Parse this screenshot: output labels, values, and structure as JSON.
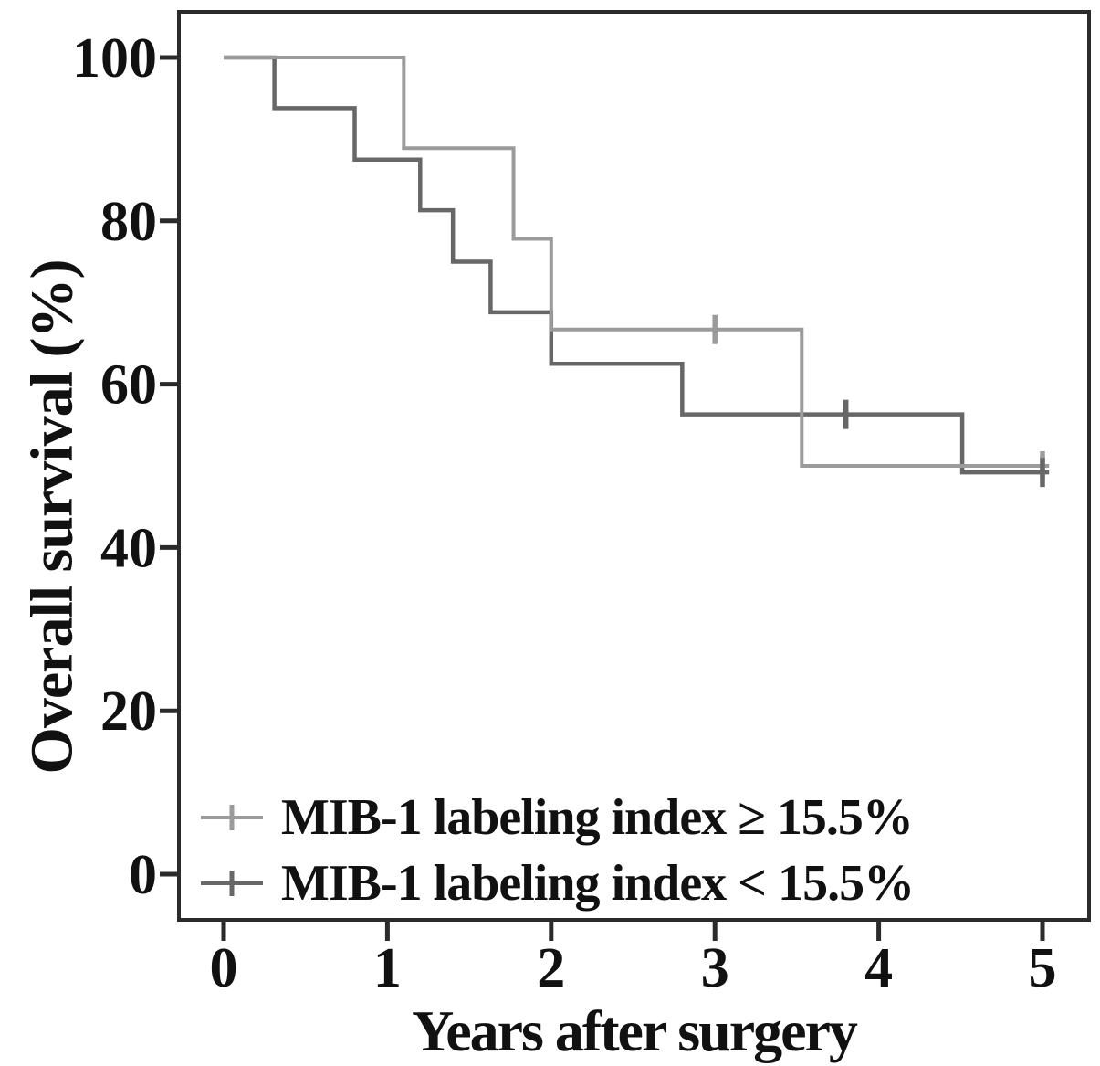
{
  "chart_data": {
    "type": "line",
    "subtype": "kaplan-meier-step-curves",
    "title": "",
    "xlabel": "Years after surgery",
    "ylabel": "Overall survival (%)",
    "xlim": [
      0,
      5.1
    ],
    "ylim": [
      0,
      105
    ],
    "x_ticks": [
      0,
      1,
      2,
      3,
      4,
      5
    ],
    "y_ticks": [
      0,
      20,
      40,
      60,
      80,
      100
    ],
    "grid": false,
    "legend_position": "inside-bottom-left",
    "axis_color": "#2b2b2b",
    "text_color": "#111111",
    "series": [
      {
        "name": "MIB-1 labeling index ≥ 15.5%",
        "color": "#9b9b9b",
        "marker": "plus-censor-tick",
        "steps": [
          [
            0,
            100
          ],
          [
            1.1,
            88.9
          ],
          [
            1.77,
            77.8
          ],
          [
            2.0,
            66.7
          ],
          [
            3.53,
            50.0
          ]
        ],
        "end_time": 5.04,
        "censor_marks": [
          [
            3.0,
            66.7
          ],
          [
            5.0,
            50.0
          ]
        ]
      },
      {
        "name": "MIB-1 labeling index < 15.5%",
        "color": "#676767",
        "marker": "plus-censor-tick",
        "steps": [
          [
            0,
            100
          ],
          [
            0.31,
            93.8
          ],
          [
            0.8,
            87.5
          ],
          [
            1.2,
            81.3
          ],
          [
            1.4,
            75.0
          ],
          [
            1.63,
            68.8
          ],
          [
            2.0,
            62.5
          ],
          [
            2.8,
            56.3
          ],
          [
            4.51,
            49.2
          ]
        ],
        "end_time": 5.04,
        "censor_marks": [
          [
            3.8,
            56.3
          ],
          [
            5.0,
            49.2
          ]
        ]
      }
    ]
  },
  "legend": {
    "items": [
      {
        "label": "MIB-1 labeling index ≥ 15.5%"
      },
      {
        "label": "MIB-1 labeling index < 15.5%"
      }
    ]
  }
}
